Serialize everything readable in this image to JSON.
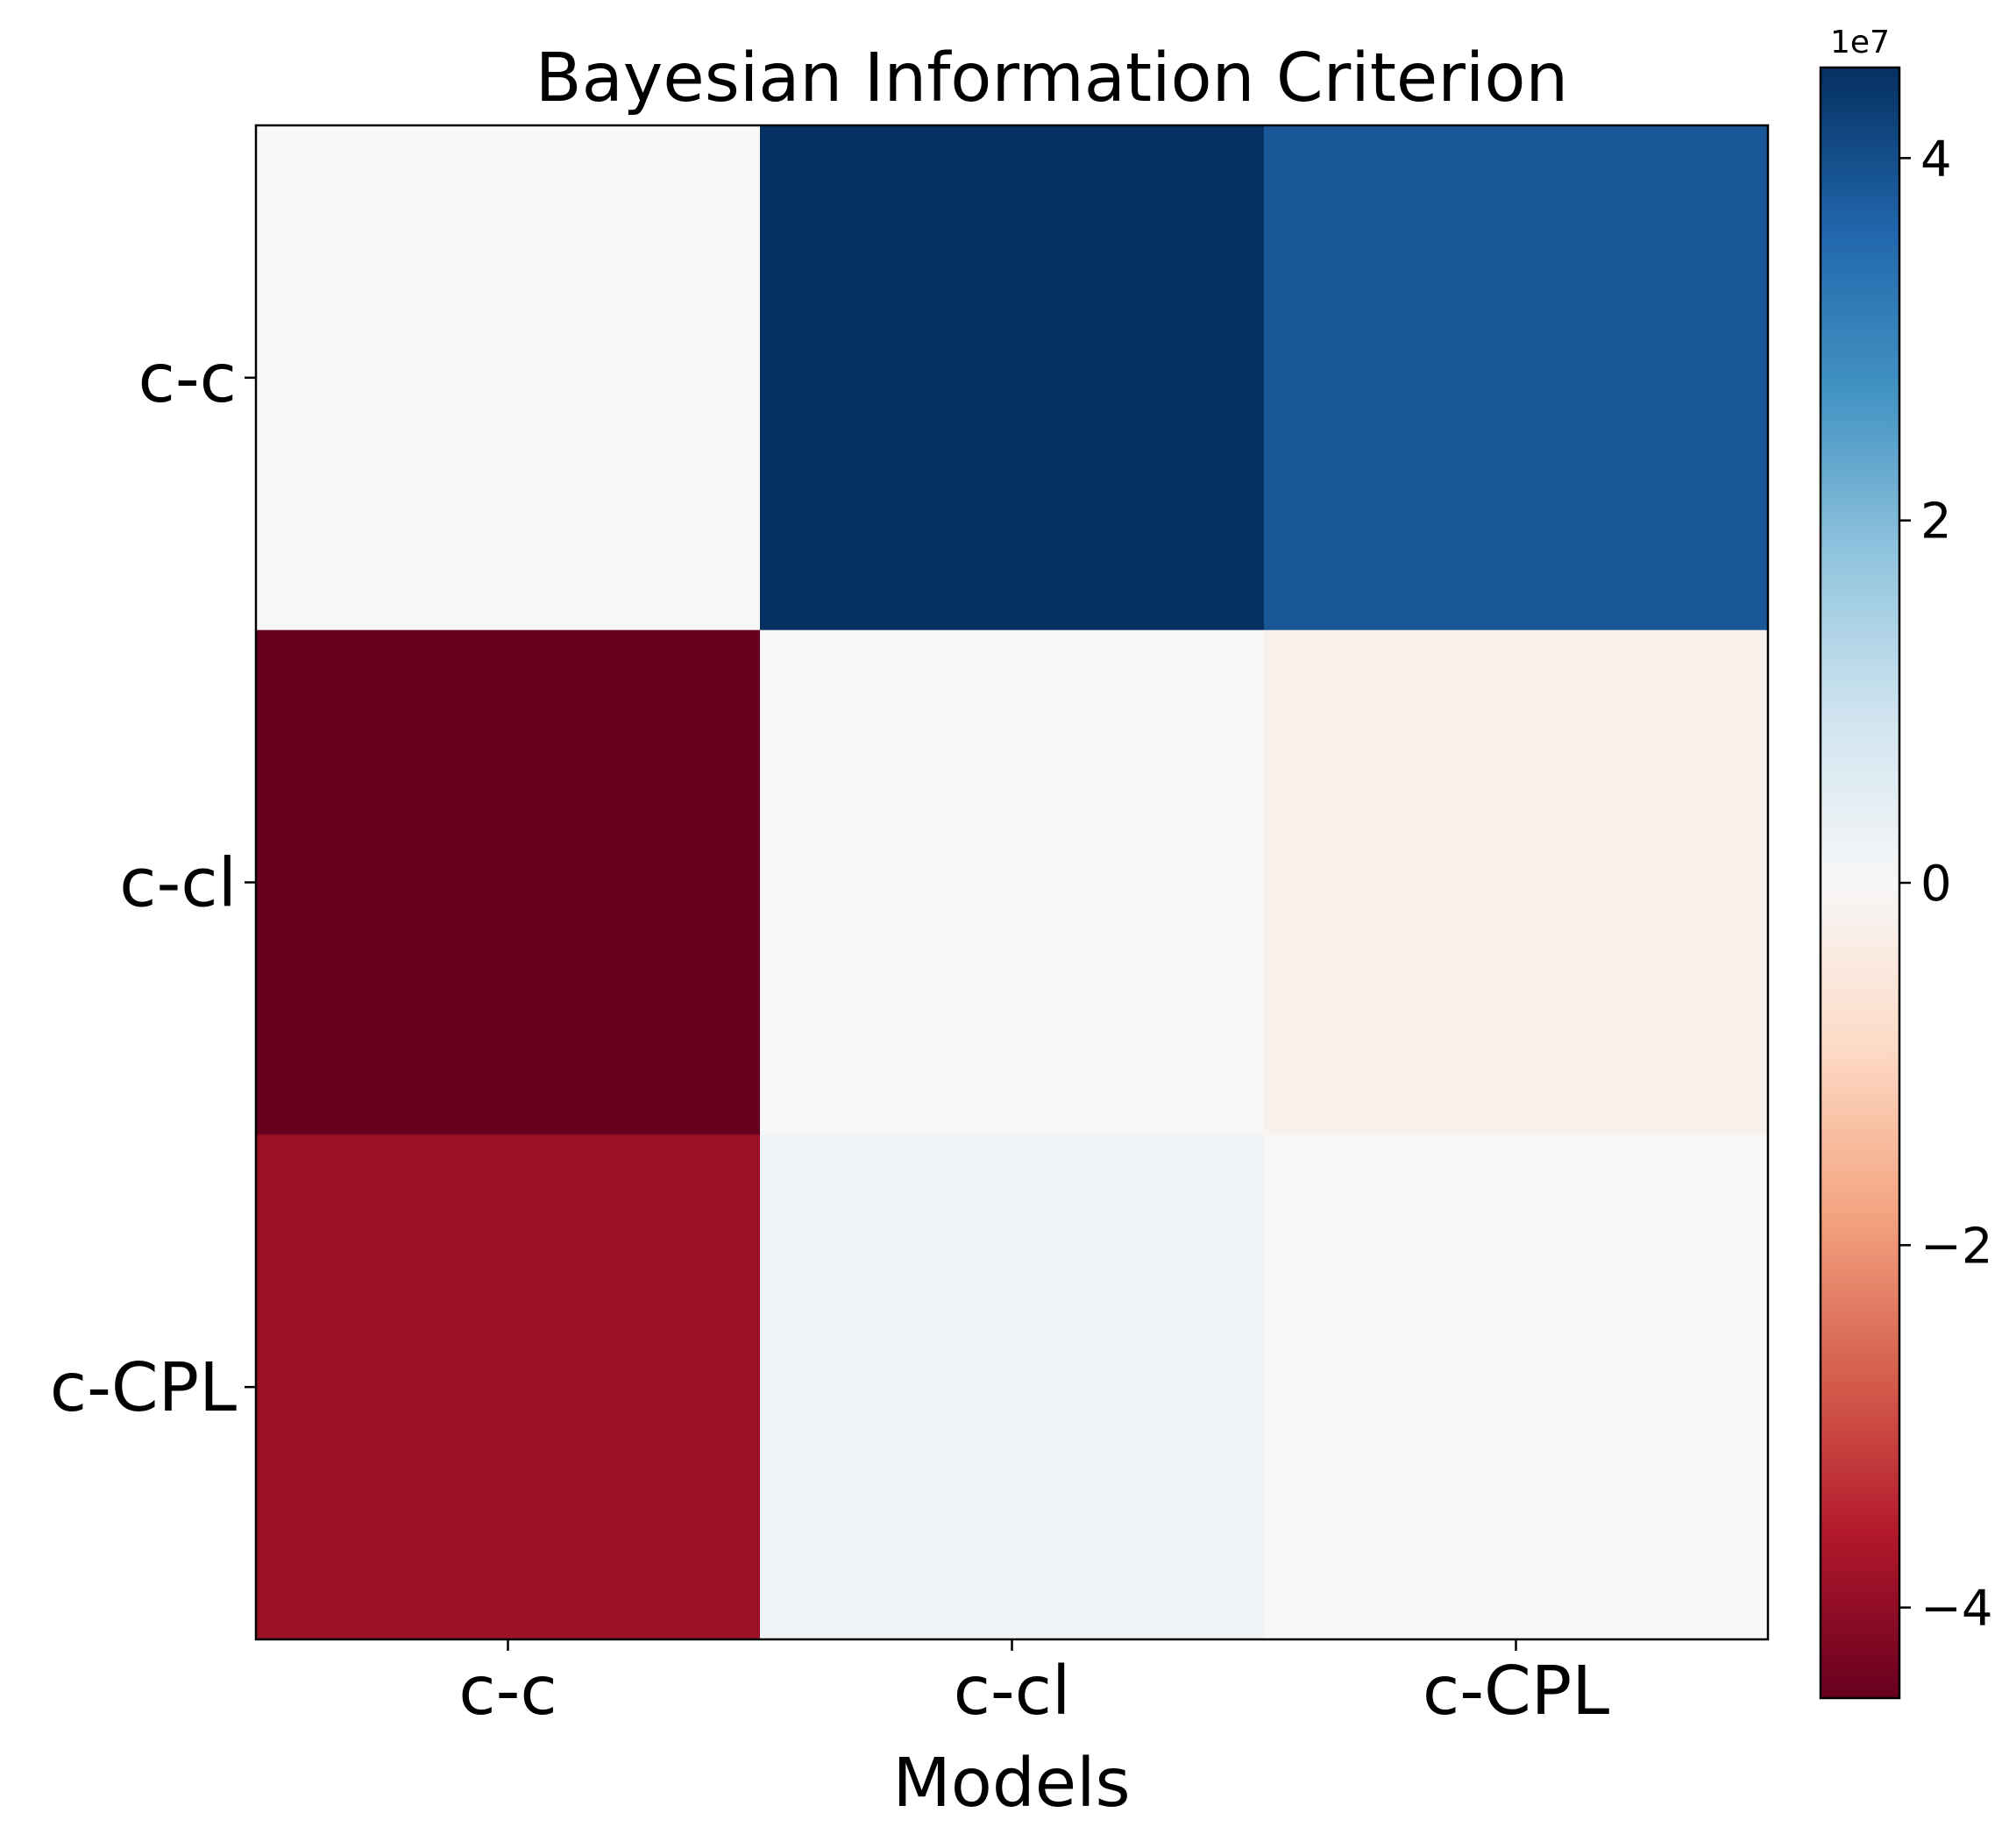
{
  "chart_data": {
    "type": "heatmap",
    "title": "Bayesian Information Criterion",
    "xlabel": "Models",
    "ylabel": "",
    "x_categories": [
      "c-c",
      "c-cl",
      "c-CPL"
    ],
    "y_categories": [
      "c-c",
      "c-cl",
      "c-CPL"
    ],
    "values": [
      [
        0,
        45000000,
        38500000
      ],
      [
        -45000000,
        0,
        -2000000
      ],
      [
        -39000000,
        2000000,
        0
      ]
    ],
    "colormap": "RdBu",
    "color_range": [
      -45000000,
      45000000
    ],
    "colorbar": {
      "ticks": [
        -4,
        -2,
        0,
        2,
        4
      ],
      "tick_labels": [
        "−4",
        "−2",
        "0",
        "2",
        "4"
      ],
      "multiplier_label": "1e7",
      "position": "right"
    },
    "grid": false
  }
}
